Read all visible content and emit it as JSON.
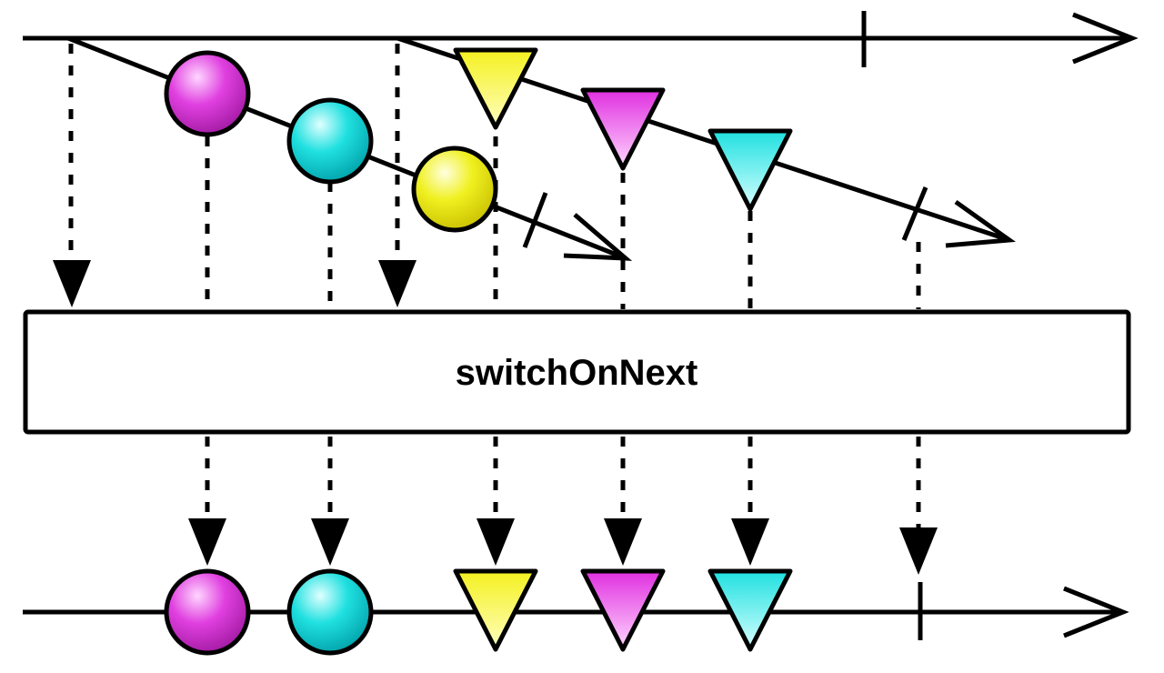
{
  "operator": {
    "label": "switchOnNext"
  },
  "colors": {
    "magenta": "#e040e0",
    "cyan": "#20e0e0",
    "yellow": "#f0f020",
    "line": "#000000",
    "box_fill": "#ffffff"
  },
  "input": {
    "outer_stream": "timeline",
    "inner_streams": [
      {
        "items": [
          {
            "shape": "circle",
            "color": "magenta"
          },
          {
            "shape": "circle",
            "color": "cyan"
          },
          {
            "shape": "circle",
            "color": "yellow"
          }
        ],
        "terminated": true
      },
      {
        "items": [
          {
            "shape": "triangle",
            "color": "yellow"
          },
          {
            "shape": "triangle",
            "color": "magenta"
          },
          {
            "shape": "triangle",
            "color": "cyan"
          }
        ],
        "terminated": true
      }
    ],
    "completed": true
  },
  "output": {
    "items": [
      {
        "shape": "circle",
        "color": "magenta"
      },
      {
        "shape": "circle",
        "color": "cyan"
      },
      {
        "shape": "triangle",
        "color": "yellow"
      },
      {
        "shape": "triangle",
        "color": "magenta"
      },
      {
        "shape": "triangle",
        "color": "cyan"
      }
    ],
    "completed": true
  }
}
